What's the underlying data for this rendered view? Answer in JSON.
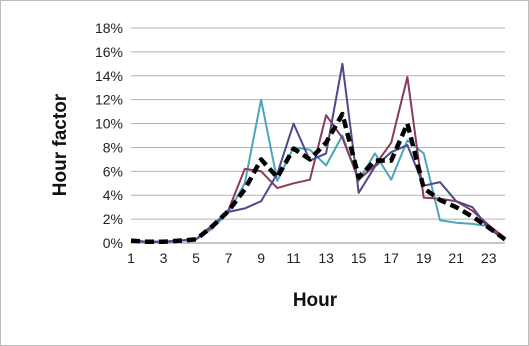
{
  "chart_data": {
    "type": "line",
    "title": "",
    "xlabel": "Hour",
    "ylabel": "Hour factor",
    "x": [
      1,
      2,
      3,
      4,
      5,
      6,
      7,
      8,
      9,
      10,
      11,
      12,
      13,
      14,
      15,
      16,
      17,
      18,
      19,
      20,
      21,
      22,
      23,
      24
    ],
    "x_tick_labels": [
      "1",
      "3",
      "5",
      "7",
      "9",
      "11",
      "13",
      "15",
      "17",
      "19",
      "21",
      "23"
    ],
    "y_tick_labels": [
      "0%",
      "2%",
      "4%",
      "6%",
      "8%",
      "10%",
      "12%",
      "14%",
      "16%",
      "18%"
    ],
    "ylim": [
      0,
      18
    ],
    "y_unit": "percent",
    "grid": "horizontal",
    "legend": "none",
    "series": [
      {
        "color": "#4aa6b8",
        "style": "solid",
        "values": [
          0.2,
          0.1,
          0.1,
          0.2,
          0.3,
          1.2,
          2.6,
          5.0,
          12.0,
          5.2,
          8.0,
          7.8,
          6.5,
          9.0,
          5.2,
          7.5,
          5.3,
          8.6,
          7.5,
          1.9,
          1.7,
          1.6,
          1.4,
          0.4
        ]
      },
      {
        "color": "#8a3a5e",
        "style": "solid",
        "values": [
          0.2,
          0.1,
          0.1,
          0.2,
          0.3,
          1.4,
          2.8,
          6.2,
          6.0,
          4.6,
          5.0,
          5.3,
          10.7,
          8.8,
          5.3,
          6.5,
          8.4,
          13.9,
          3.8,
          3.7,
          3.5,
          2.7,
          1.5,
          0.4
        ]
      },
      {
        "color": "#4d4a8a",
        "style": "solid",
        "values": [
          0.2,
          0.1,
          0.1,
          0.2,
          0.3,
          1.5,
          2.6,
          2.9,
          3.5,
          5.8,
          10.0,
          6.9,
          7.5,
          15.0,
          4.2,
          6.4,
          7.6,
          8.2,
          4.8,
          5.1,
          3.5,
          3.0,
          1.2,
          0.3
        ]
      },
      {
        "color": "#000000",
        "style": "dashed",
        "values": [
          0.2,
          0.1,
          0.1,
          0.2,
          0.3,
          1.4,
          2.7,
          4.5,
          7.0,
          5.5,
          7.9,
          7.0,
          8.4,
          10.8,
          5.5,
          6.9,
          6.9,
          10.0,
          4.6,
          3.6,
          3.0,
          2.2,
          1.3,
          0.3
        ]
      }
    ]
  }
}
